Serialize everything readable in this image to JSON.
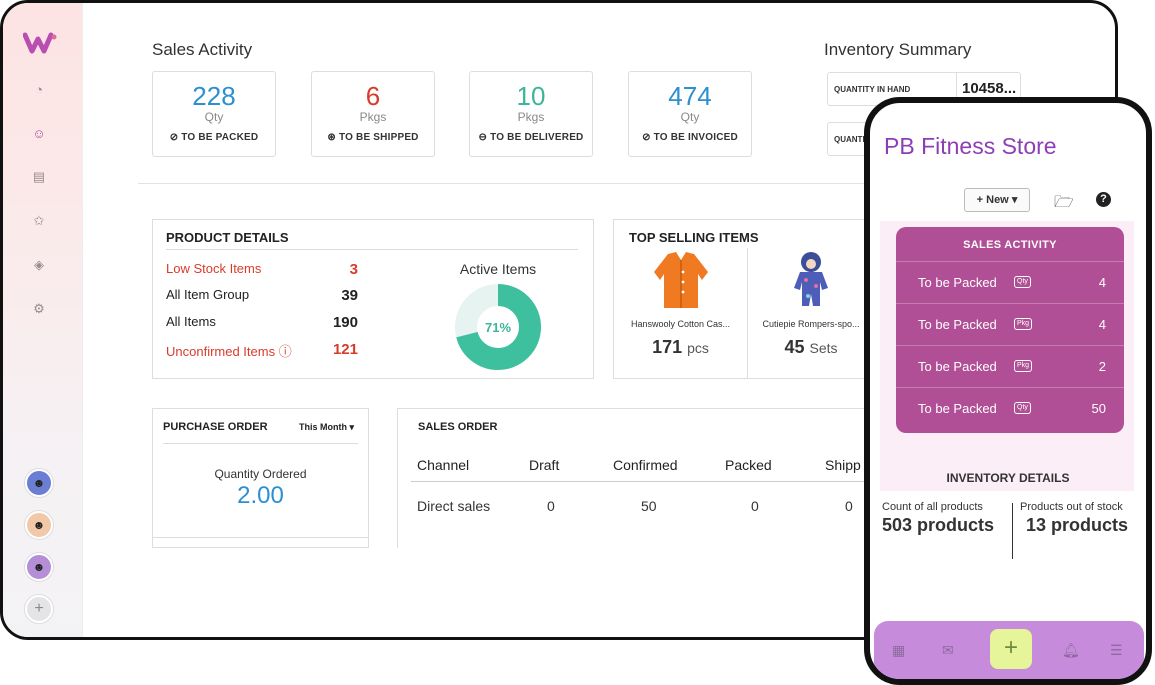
{
  "sales_activity": {
    "title": "Sales Activity",
    "cards": [
      {
        "value": "228",
        "unit": "Qty",
        "label": "TO BE PACKED",
        "color": "#2b8fd0"
      },
      {
        "value": "6",
        "unit": "Pkgs",
        "label": "TO BE SHIPPED",
        "color": "#d93b2b"
      },
      {
        "value": "10",
        "unit": "Pkgs",
        "label": "TO BE DELIVERED",
        "color": "#3eb59a"
      },
      {
        "value": "474",
        "unit": "Qty",
        "label": "TO BE INVOICED",
        "color": "#2b8fd0"
      }
    ]
  },
  "inventory_summary": {
    "title": "Inventory Summary",
    "rows": [
      {
        "label": "QUANTITY IN HAND",
        "value": "10458..."
      },
      {
        "label": "QUANTI",
        "value": ""
      }
    ]
  },
  "product_details": {
    "title": "PRODUCT DETAILS",
    "rows": [
      {
        "label": "Low Stock Items",
        "value": "3"
      },
      {
        "label": "All Item Group",
        "value": "39"
      },
      {
        "label": "All Items",
        "value": "190"
      },
      {
        "label": "Unconfirmed Items ⓘ",
        "value": "121"
      }
    ],
    "chart_title": "Active Items",
    "active_percent": "71%",
    "active_fraction": 0.71
  },
  "top_selling": {
    "title": "TOP SELLING ITEMS",
    "items": [
      {
        "name": "Hanswooly Cotton Cas...",
        "qty": "171",
        "unit": "pcs"
      },
      {
        "name": "Cutiepie Rompers-spo...",
        "qty": "45",
        "unit": "Sets"
      }
    ]
  },
  "purchase_order": {
    "title": "PURCHASE ORDER",
    "period": "This Month",
    "qty_label": "Quantity Ordered",
    "qty_value": "2.00"
  },
  "sales_order": {
    "title": "SALES ORDER",
    "headers": [
      "Channel",
      "Draft",
      "Confirmed",
      "Packed",
      "Shipp"
    ],
    "rows": [
      [
        "Direct sales",
        "0",
        "50",
        "0",
        "0"
      ]
    ]
  },
  "phone": {
    "store_title": "PB Fitness Store",
    "new_button": "+ New",
    "sales_activity_title": "SALES ACTIVITY",
    "sales_rows": [
      {
        "label": "To be Packed",
        "tag": "Qty",
        "value": "4"
      },
      {
        "label": "To be Packed",
        "tag": "Pkg",
        "value": "4"
      },
      {
        "label": "To be Packed",
        "tag": "Pkg",
        "value": "2"
      },
      {
        "label": "To be Packed",
        "tag": "Qty",
        "value": "50"
      }
    ],
    "inventory_title": "INVENTORY DETAILS",
    "inventory_cols": [
      {
        "label": "Count of all products",
        "value": "503 products"
      },
      {
        "label": "Products out of stock",
        "value": "13 products"
      }
    ]
  },
  "icons": {
    "nav": [
      "dashboard-icon",
      "items-icon",
      "documents-icon",
      "badge-icon",
      "tags-icon",
      "settings-icon"
    ],
    "bottom_bar": [
      "grid-icon",
      "mail-icon",
      "plus-icon",
      "bell-icon",
      "menu-icon"
    ]
  },
  "colors": {
    "accent": "#b04f95",
    "donut": "#3ebf9e",
    "donut_bg": "#e6f3f0"
  }
}
